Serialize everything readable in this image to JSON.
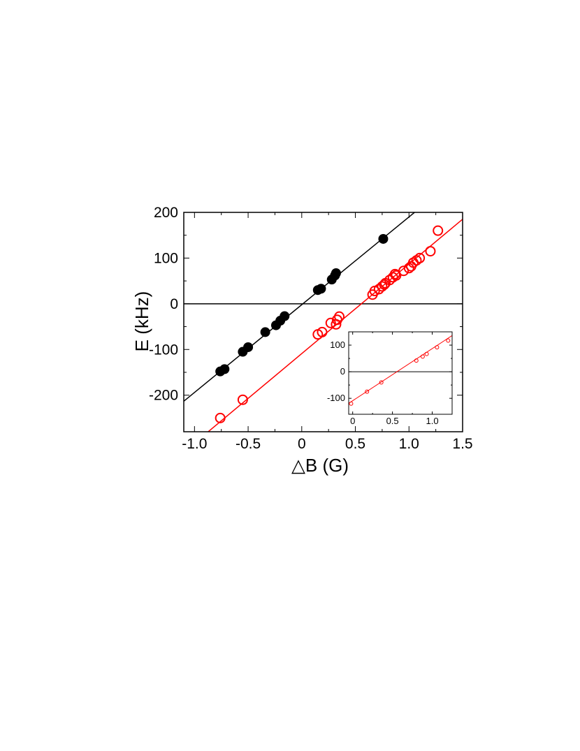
{
  "chart_data": [
    {
      "type": "scatter",
      "xlabel": "△B (G)",
      "ylabel": "E (kHz)",
      "xlim": [
        -1.1,
        1.5
      ],
      "ylim": [
        -280,
        200
      ],
      "x_ticks": [
        -1.0,
        -0.5,
        0.0,
        0.5,
        1.0,
        1.5
      ],
      "x_tick_labels": [
        "-1.0",
        "-0.5",
        "0",
        "0.5",
        "1.0",
        "1.5"
      ],
      "y_ticks": [
        -200,
        -100,
        0,
        100,
        200
      ],
      "y_tick_labels": [
        "-200",
        "-100",
        "0",
        "100",
        "200"
      ],
      "grid": false,
      "zero_line": true,
      "series": [
        {
          "marker": "filled-circle",
          "color": "#000000",
          "x": [
            -0.76,
            -0.72,
            -0.55,
            -0.5,
            -0.34,
            -0.24,
            -0.2,
            -0.16,
            0.15,
            0.18,
            0.28,
            0.31,
            0.32,
            0.76
          ],
          "y": [
            -148,
            -143,
            -105,
            -95,
            -62,
            -47,
            -37,
            -27,
            30,
            33,
            53,
            62,
            67,
            142
          ],
          "fit": {
            "slope": 192,
            "intercept": -2
          }
        },
        {
          "marker": "open-circle",
          "color": "#ff0000",
          "x": [
            -0.76,
            -0.55,
            0.15,
            0.19,
            0.27,
            0.32,
            0.33,
            0.35,
            0.66,
            0.68,
            0.72,
            0.75,
            0.77,
            0.78,
            0.82,
            0.85,
            0.87,
            0.88,
            0.95,
            1.0,
            1.02,
            1.04,
            1.07,
            1.1,
            1.2,
            1.27
          ],
          "y": [
            -250,
            -210,
            -67,
            -62,
            -42,
            -45,
            -35,
            -28,
            20,
            28,
            32,
            38,
            42,
            45,
            52,
            58,
            65,
            62,
            72,
            78,
            82,
            90,
            95,
            100,
            115,
            160
          ],
          "fit": {
            "slope": 196,
            "intercept": -109
          }
        }
      ]
    },
    {
      "type": "scatter",
      "xlim": [
        -0.05,
        1.25
      ],
      "ylim": [
        -160,
        150
      ],
      "x_ticks": [
        0.0,
        0.5,
        1.0
      ],
      "x_tick_labels": [
        "0",
        "0.5",
        "1.0"
      ],
      "y_ticks": [
        -100,
        0,
        100
      ],
      "y_tick_labels": [
        "-100",
        "0",
        "100"
      ],
      "grid": false,
      "zero_line": true,
      "series": [
        {
          "marker": "open-circle",
          "color": "#ff0000",
          "x": [
            -0.02,
            0.18,
            0.36,
            0.8,
            0.88,
            0.93,
            1.06,
            1.2
          ],
          "y": [
            -120,
            -75,
            -40,
            42,
            57,
            67,
            92,
            117
          ],
          "fit": {
            "slope": 196,
            "intercept": -109
          }
        }
      ]
    }
  ]
}
